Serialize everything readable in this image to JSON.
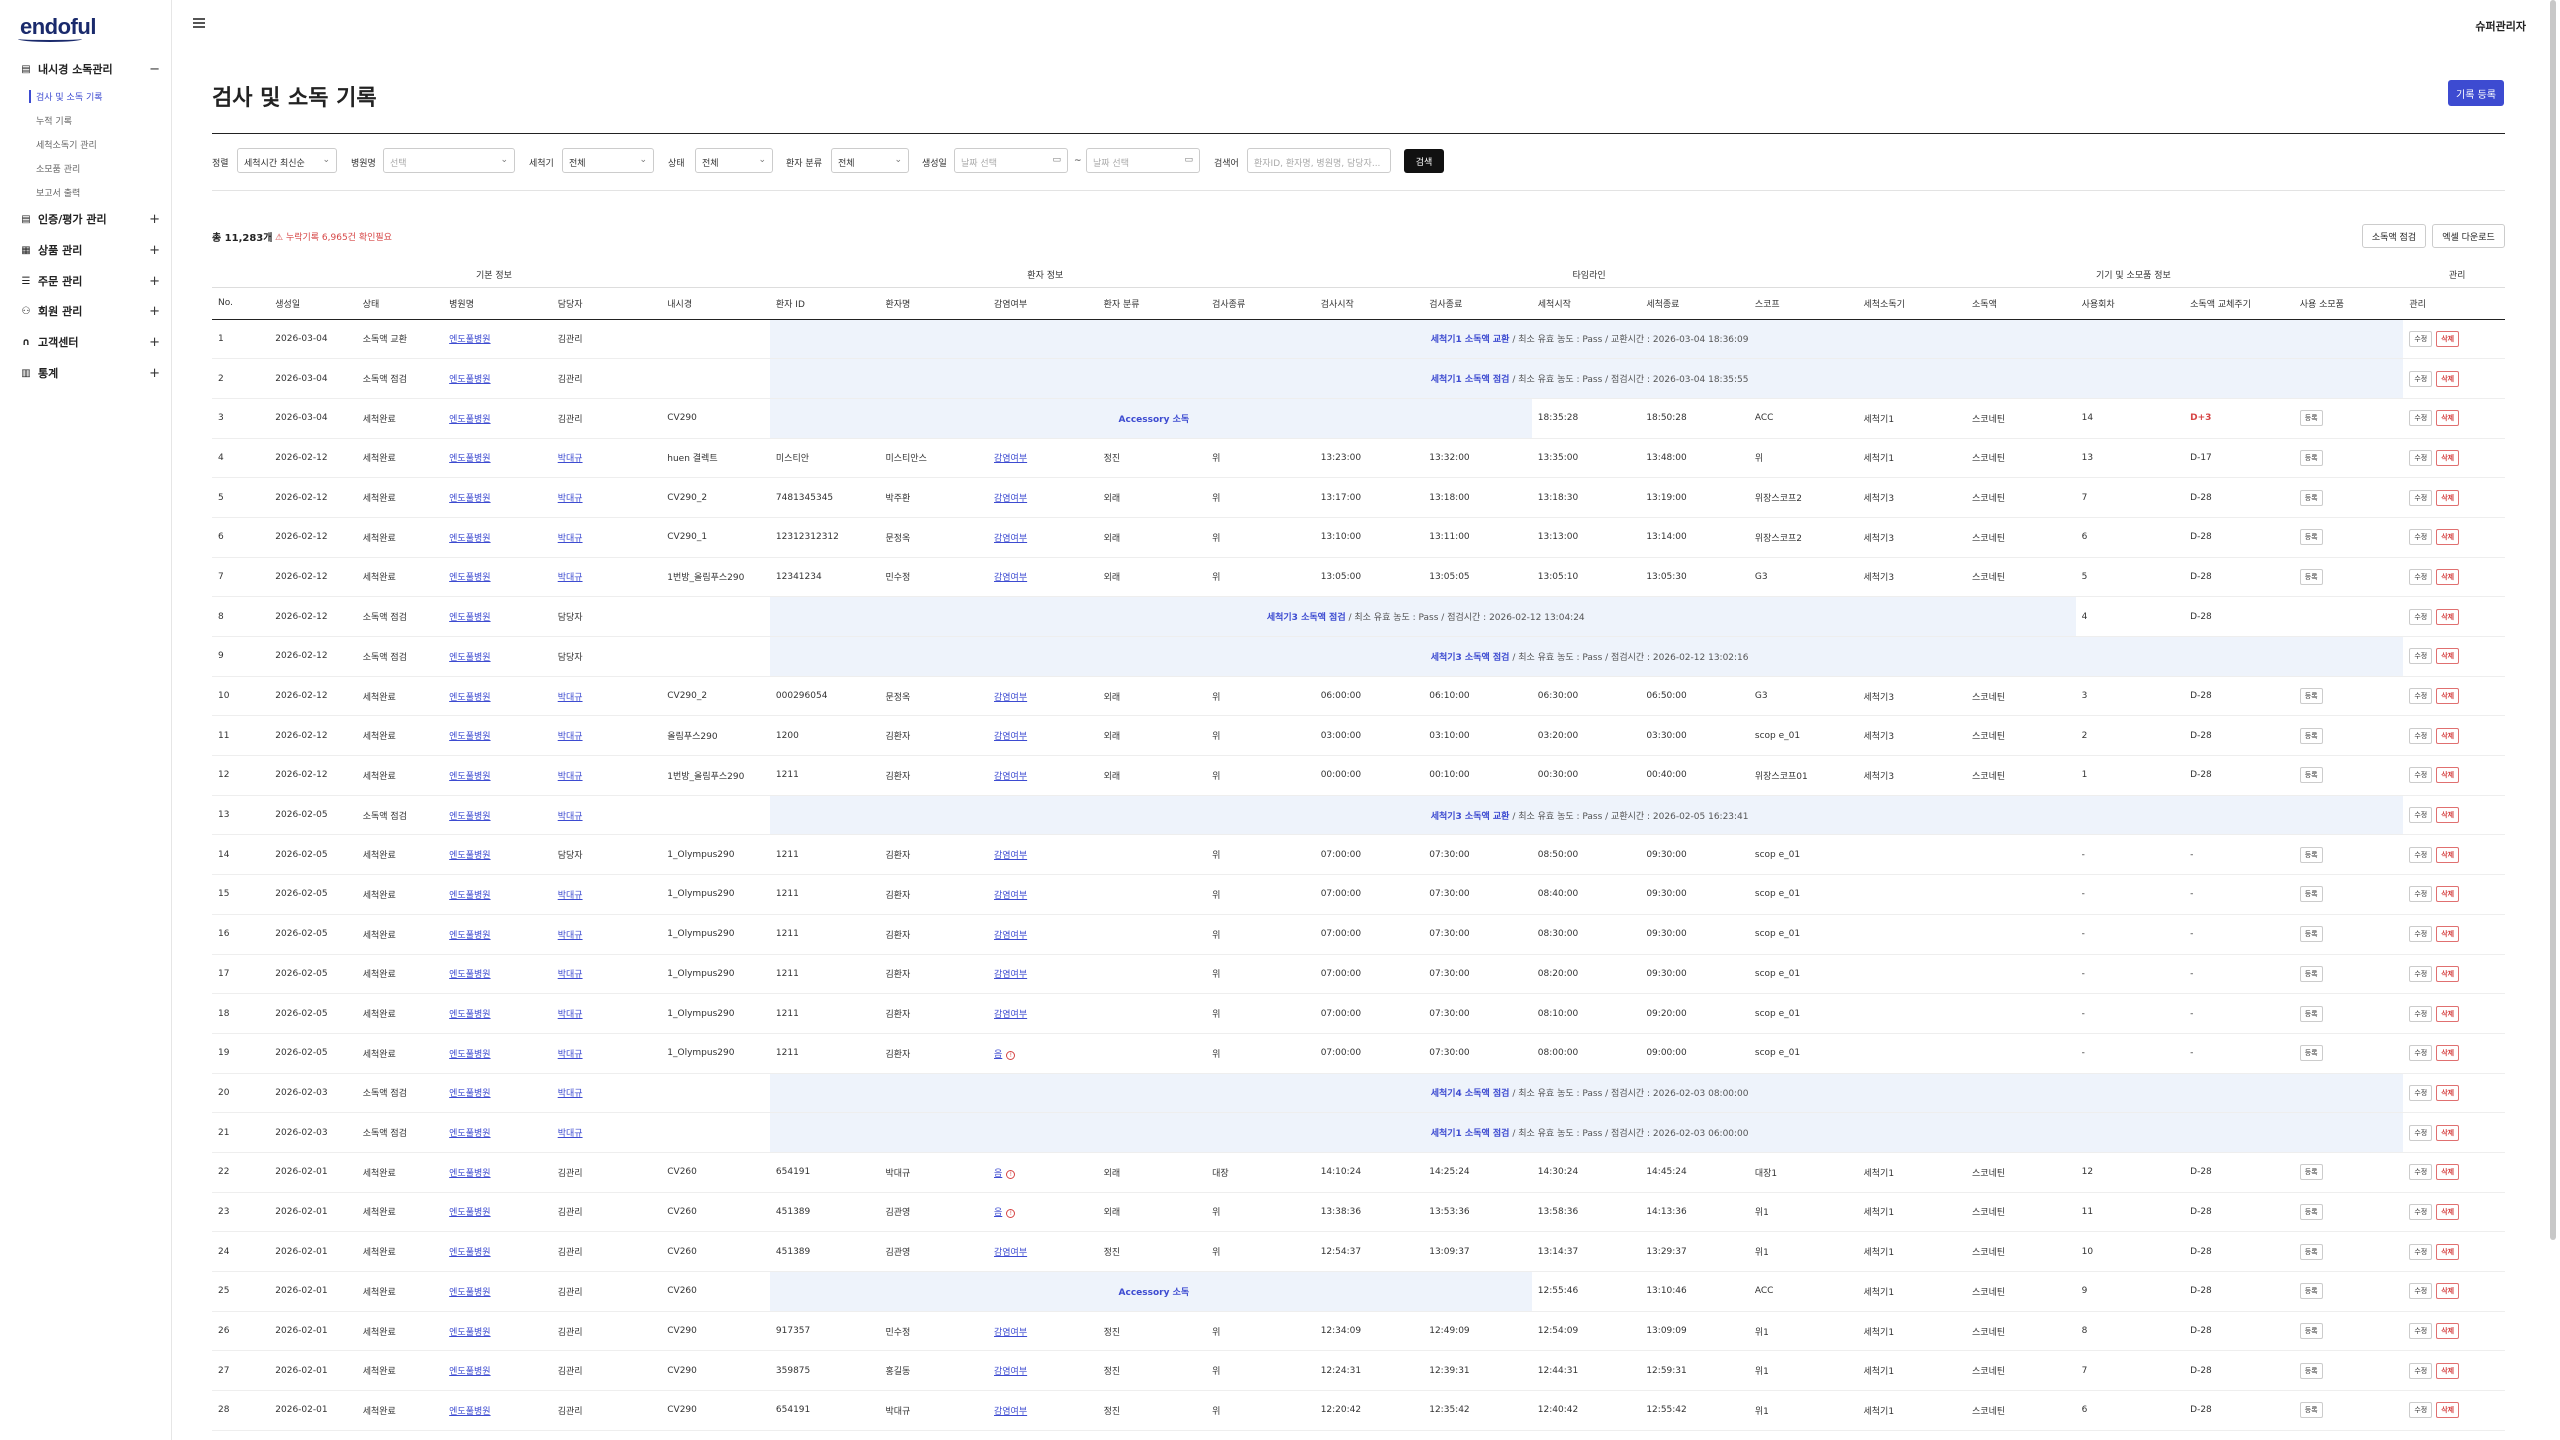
{
  "app": {
    "logo": "endoful",
    "user": "슈퍼관리자"
  },
  "sidebar": {
    "groups": [
      {
        "label": "내시경 소독관리",
        "icon": "doc-icon",
        "toggle": "−"
      },
      {
        "label": "인증/평가 관리",
        "icon": "doc-icon",
        "toggle": "+"
      },
      {
        "label": "상품 관리",
        "icon": "grid-icon",
        "toggle": "+"
      },
      {
        "label": "주문 관리",
        "icon": "list-icon",
        "toggle": "+"
      },
      {
        "label": "회원 관리",
        "icon": "user-icon",
        "toggle": "+"
      },
      {
        "label": "고객센터",
        "icon": "headset-icon",
        "toggle": "+"
      },
      {
        "label": "통계",
        "icon": "chart-icon",
        "toggle": "+"
      }
    ],
    "subitems": [
      "검사 및 소독 기록",
      "누적 기록",
      "세척소독기 관리",
      "소모품 관리",
      "보고서 출력"
    ]
  },
  "page": {
    "title": "검사 및 소독 기록",
    "register_button": "기록 등록"
  },
  "filters": {
    "sort_label": "정렬",
    "sort_value": "세척시간 최신순",
    "hospital_label": "병원명",
    "hospital_placeholder": "선택",
    "washer_label": "세척기",
    "washer_value": "전체",
    "status_label": "상태",
    "status_value": "전체",
    "patient_type_label": "환자 분류",
    "patient_type_value": "전체",
    "date_label": "생성일",
    "date_from_placeholder": "날짜 선택",
    "date_sep": "~",
    "date_to_placeholder": "날짜 선택",
    "search_label": "검색어",
    "search_placeholder": "환자ID, 환자명, 병원명, 담당자...",
    "search_button": "검색"
  },
  "summary": {
    "total": "총 11,283개",
    "warning": "누락기록 6,965건 확인필요",
    "btn_check": "소독액 점검",
    "btn_excel": "엑셀 다운로드"
  },
  "table": {
    "groups": [
      "기본 정보",
      "환자 정보",
      "타임라인",
      "기기 및 소모품 정보",
      "관리"
    ],
    "columns": [
      "No.",
      "생성일",
      "상태",
      "병원명",
      "담당자",
      "내시경",
      "환자 ID",
      "환자명",
      "감염여부",
      "환자 분류",
      "검사종류",
      "검사시작",
      "검사종료",
      "세척시작",
      "세척종료",
      "스코프",
      "세척소독기",
      "소독액",
      "사용회차",
      "소독액 교체주기",
      "사용 소모품",
      "관리"
    ],
    "actions": {
      "register": "등록",
      "edit": "수정",
      "delete": "삭제"
    },
    "rows": [
      {
        "no": "1",
        "date": "2026-03-04",
        "status": "소독액 교환",
        "hospital": "엔도풀병원",
        "staff": "김관리",
        "note_bold": "세척기1 소독액 교환",
        "note": " / 최소 유효 농도 : Pass / 교환시간 : 2026-03-04 18:36:09"
      },
      {
        "no": "2",
        "date": "2026-03-04",
        "status": "소독액 점검",
        "hospital": "엔도풀병원",
        "staff": "김관리",
        "note_bold": "세척기1 소독액 점검",
        "note": " / 최소 유효 농도 : Pass / 점검시간 : 2026-03-04 18:35:55"
      },
      {
        "no": "3",
        "date": "2026-03-04",
        "status": "세척완료",
        "hospital": "엔도풀병원",
        "staff": "김관리",
        "scope_name": "CV290",
        "accessory": "Accessory 소독",
        "wash_s": "18:35:28",
        "wash_e": "18:50:28",
        "scope": "ACC",
        "washer": "세척기1",
        "disinfectant": "스코네틴",
        "uses": "14",
        "cycle": "D+3",
        "cycle_red": true
      },
      {
        "no": "4",
        "date": "2026-02-12",
        "status": "세척완료",
        "hospital": "엔도풀병원",
        "staff": "박대규",
        "scope_name": "huen 결렉트",
        "pid": "미스티안",
        "pname": "미스티안스",
        "infect": "감염여부",
        "ptype": "정진",
        "exam": "위",
        "ex_s": "13:23:00",
        "ex_e": "13:32:00",
        "wash_s": "13:35:00",
        "wash_e": "13:48:00",
        "scope": "위",
        "washer": "세척기1",
        "disinfectant": "스코네틴",
        "uses": "13",
        "cycle": "D-17"
      },
      {
        "no": "5",
        "date": "2026-02-12",
        "status": "세척완료",
        "hospital": "엔도풀병원",
        "staff": "박대규",
        "scope_name": "CV290_2",
        "pid": "7481345345",
        "pname": "박주환",
        "infect": "감염여부",
        "ptype": "외래",
        "exam": "위",
        "ex_s": "13:17:00",
        "ex_e": "13:18:00",
        "wash_s": "13:18:30",
        "wash_e": "13:19:00",
        "scope": "위장스코프2",
        "washer": "세척기3",
        "disinfectant": "스코네틴",
        "uses": "7",
        "cycle": "D-28"
      },
      {
        "no": "6",
        "date": "2026-02-12",
        "status": "세척완료",
        "hospital": "엔도풀병원",
        "staff": "박대규",
        "scope_name": "CV290_1",
        "pid": "12312312312",
        "pname": "문정옥",
        "infect": "감염여부",
        "ptype": "외래",
        "exam": "위",
        "ex_s": "13:10:00",
        "ex_e": "13:11:00",
        "wash_s": "13:13:00",
        "wash_e": "13:14:00",
        "scope": "위장스코프2",
        "washer": "세척기3",
        "disinfectant": "스코네틴",
        "uses": "6",
        "cycle": "D-28"
      },
      {
        "no": "7",
        "date": "2026-02-12",
        "status": "세척완료",
        "hospital": "엔도풀병원",
        "staff": "박대규",
        "scope_name": "1번방_올림푸스290",
        "pid": "12341234",
        "pname": "민수정",
        "infect": "감염여부",
        "ptype": "외래",
        "exam": "위",
        "ex_s": "13:05:00",
        "ex_e": "13:05:05",
        "wash_s": "13:05:10",
        "wash_e": "13:05:30",
        "scope": "G3",
        "washer": "세척기3",
        "disinfectant": "스코네틴",
        "uses": "5",
        "cycle": "D-28"
      },
      {
        "no": "8",
        "date": "2026-02-12",
        "status": "소독액 점검",
        "hospital": "엔도풀병원",
        "staff": "담당자",
        "note_bold": "세척기3 소독액 점검",
        "note": " / 최소 유효 농도 : Pass / 점검시간 : 2026-02-12 13:04:24",
        "span_short": true,
        "uses": "4",
        "cycle": "D-28"
      },
      {
        "no": "9",
        "date": "2026-02-12",
        "status": "소독액 점검",
        "hospital": "엔도풀병원",
        "staff": "담당자",
        "note_bold": "세척기3 소독액 점검",
        "note": " / 최소 유효 농도 : Pass / 점검시간 : 2026-02-12 13:02:16"
      },
      {
        "no": "10",
        "date": "2026-02-12",
        "status": "세척완료",
        "hospital": "엔도풀병원",
        "staff": "박대규",
        "scope_name": "CV290_2",
        "pid": "000296054",
        "pname": "문정옥",
        "infect": "감염여부",
        "ptype": "외래",
        "exam": "위",
        "ex_s": "06:00:00",
        "ex_e": "06:10:00",
        "wash_s": "06:30:00",
        "wash_e": "06:50:00",
        "scope": "G3",
        "washer": "세척기3",
        "disinfectant": "스코네틴",
        "uses": "3",
        "cycle": "D-28"
      },
      {
        "no": "11",
        "date": "2026-02-12",
        "status": "세척완료",
        "hospital": "엔도풀병원",
        "staff": "박대규",
        "scope_name": "올림푸스290",
        "pid": "1200",
        "pname": "김환자",
        "infect": "감염여부",
        "ptype": "외래",
        "exam": "위",
        "ex_s": "03:00:00",
        "ex_e": "03:10:00",
        "wash_s": "03:20:00",
        "wash_e": "03:30:00",
        "scope": "scop e_01",
        "washer": "세척기3",
        "disinfectant": "스코네틴",
        "uses": "2",
        "cycle": "D-28"
      },
      {
        "no": "12",
        "date": "2026-02-12",
        "status": "세척완료",
        "hospital": "엔도풀병원",
        "staff": "박대규",
        "scope_name": "1번방_올림푸스290",
        "pid": "1211",
        "pname": "김환자",
        "infect": "감염여부",
        "ptype": "외래",
        "exam": "위",
        "ex_s": "00:00:00",
        "ex_e": "00:10:00",
        "wash_s": "00:30:00",
        "wash_e": "00:40:00",
        "scope": "위장스코프01",
        "washer": "세척기3",
        "disinfectant": "스코네틴",
        "uses": "1",
        "cycle": "D-28"
      },
      {
        "no": "13",
        "date": "2026-02-05",
        "status": "소독액 점검",
        "hospital": "엔도풀병원",
        "staff": "박대규",
        "note_bold": "세척기3 소독액 교환",
        "note": " / 최소 유효 농도 : Pass / 교환시간 : 2026-02-05 16:23:41"
      },
      {
        "no": "14",
        "date": "2026-02-05",
        "status": "세척완료",
        "hospital": "엔도풀병원",
        "staff": "담당자",
        "scope_name": "1_Olympus290",
        "pid": "1211",
        "pname": "김환자",
        "infect": "감염여부",
        "exam": "위",
        "ex_s": "07:00:00",
        "ex_e": "07:30:00",
        "wash_s": "08:50:00",
        "wash_e": "09:30:00",
        "scope": "scop e_01",
        "uses": "-",
        "cycle": "-"
      },
      {
        "no": "15",
        "date": "2026-02-05",
        "status": "세척완료",
        "hospital": "엔도풀병원",
        "staff": "박대규",
        "scope_name": "1_Olympus290",
        "pid": "1211",
        "pname": "김환자",
        "infect": "감염여부",
        "exam": "위",
        "ex_s": "07:00:00",
        "ex_e": "07:30:00",
        "wash_s": "08:40:00",
        "wash_e": "09:30:00",
        "scope": "scop e_01",
        "uses": "-",
        "cycle": "-"
      },
      {
        "no": "16",
        "date": "2026-02-05",
        "status": "세척완료",
        "hospital": "엔도풀병원",
        "staff": "박대규",
        "scope_name": "1_Olympus290",
        "pid": "1211",
        "pname": "김환자",
        "infect": "감염여부",
        "exam": "위",
        "ex_s": "07:00:00",
        "ex_e": "07:30:00",
        "wash_s": "08:30:00",
        "wash_e": "09:30:00",
        "scope": "scop e_01",
        "uses": "-",
        "cycle": "-"
      },
      {
        "no": "17",
        "date": "2026-02-05",
        "status": "세척완료",
        "hospital": "엔도풀병원",
        "staff": "박대규",
        "scope_name": "1_Olympus290",
        "pid": "1211",
        "pname": "김환자",
        "infect": "감염여부",
        "exam": "위",
        "ex_s": "07:00:00",
        "ex_e": "07:30:00",
        "wash_s": "08:20:00",
        "wash_e": "09:30:00",
        "scope": "scop e_01",
        "uses": "-",
        "cycle": "-"
      },
      {
        "no": "18",
        "date": "2026-02-05",
        "status": "세척완료",
        "hospital": "엔도풀병원",
        "staff": "박대규",
        "scope_name": "1_Olympus290",
        "pid": "1211",
        "pname": "김환자",
        "infect": "감염여부",
        "exam": "위",
        "ex_s": "07:00:00",
        "ex_e": "07:30:00",
        "wash_s": "08:10:00",
        "wash_e": "09:20:00",
        "scope": "scop e_01",
        "uses": "-",
        "cycle": "-"
      },
      {
        "no": "19",
        "date": "2026-02-05",
        "status": "세척완료",
        "hospital": "엔도풀병원",
        "staff": "박대규",
        "scope_name": "1_Olympus290",
        "pid": "1211",
        "pname": "김환자",
        "infect": "음",
        "infect_alert": true,
        "exam": "위",
        "ex_s": "07:00:00",
        "ex_e": "07:30:00",
        "wash_s": "08:00:00",
        "wash_e": "09:00:00",
        "scope": "scop e_01",
        "uses": "-",
        "cycle": "-"
      },
      {
        "no": "20",
        "date": "2026-02-03",
        "status": "소독액 점검",
        "hospital": "엔도풀병원",
        "staff": "박대규",
        "note_bold": "세척기4 소독액 점검",
        "note": " / 최소 유효 농도 : Pass / 점검시간 : 2026-02-03 08:00:00"
      },
      {
        "no": "21",
        "date": "2026-02-03",
        "status": "소독액 점검",
        "hospital": "엔도풀병원",
        "staff": "박대규",
        "note_bold": "세척기1 소독액 점검",
        "note": " / 최소 유효 농도 : Pass / 점검시간 : 2026-02-03 06:00:00"
      },
      {
        "no": "22",
        "date": "2026-02-01",
        "status": "세척완료",
        "hospital": "엔도풀병원",
        "staff": "김관리",
        "scope_name": "CV260",
        "pid": "654191",
        "pname": "박대규",
        "infect": "음",
        "infect_alert": true,
        "ptype": "외래",
        "exam": "대장",
        "ex_s": "14:10:24",
        "ex_e": "14:25:24",
        "wash_s": "14:30:24",
        "wash_e": "14:45:24",
        "scope": "대장1",
        "washer": "세척기1",
        "disinfectant": "스코네틴",
        "uses": "12",
        "cycle": "D-28"
      },
      {
        "no": "23",
        "date": "2026-02-01",
        "status": "세척완료",
        "hospital": "엔도풀병원",
        "staff": "김관리",
        "scope_name": "CV260",
        "pid": "451389",
        "pname": "김관영",
        "infect": "음",
        "infect_alert": true,
        "ptype": "외래",
        "exam": "위",
        "ex_s": "13:38:36",
        "ex_e": "13:53:36",
        "wash_s": "13:58:36",
        "wash_e": "14:13:36",
        "scope": "위1",
        "washer": "세척기1",
        "disinfectant": "스코네틴",
        "uses": "11",
        "cycle": "D-28"
      },
      {
        "no": "24",
        "date": "2026-02-01",
        "status": "세척완료",
        "hospital": "엔도풀병원",
        "staff": "김관리",
        "scope_name": "CV260",
        "pid": "451389",
        "pname": "김관영",
        "infect": "감염여부",
        "ptype": "정진",
        "exam": "위",
        "ex_s": "12:54:37",
        "ex_e": "13:09:37",
        "wash_s": "13:14:37",
        "wash_e": "13:29:37",
        "scope": "위1",
        "washer": "세척기1",
        "disinfectant": "스코네틴",
        "uses": "10",
        "cycle": "D-28"
      },
      {
        "no": "25",
        "date": "2026-02-01",
        "status": "세척완료",
        "hospital": "엔도풀병원",
        "staff": "김관리",
        "scope_name": "CV260",
        "accessory": "Accessory 소독",
        "wash_s": "12:55:46",
        "wash_e": "13:10:46",
        "scope": "ACC",
        "washer": "세척기1",
        "disinfectant": "스코네틴",
        "uses": "9",
        "cycle": "D-28"
      },
      {
        "no": "26",
        "date": "2026-02-01",
        "status": "세척완료",
        "hospital": "엔도풀병원",
        "staff": "김관리",
        "scope_name": "CV290",
        "pid": "917357",
        "pname": "민수정",
        "infect": "감염여부",
        "ptype": "정진",
        "exam": "위",
        "ex_s": "12:34:09",
        "ex_e": "12:49:09",
        "wash_s": "12:54:09",
        "wash_e": "13:09:09",
        "scope": "위1",
        "washer": "세척기1",
        "disinfectant": "스코네틴",
        "uses": "8",
        "cycle": "D-28"
      },
      {
        "no": "27",
        "date": "2026-02-01",
        "status": "세척완료",
        "hospital": "엔도풀병원",
        "staff": "김관리",
        "scope_name": "CV290",
        "pid": "359875",
        "pname": "홍길동",
        "infect": "감염여부",
        "ptype": "정진",
        "exam": "위",
        "ex_s": "12:24:31",
        "ex_e": "12:39:31",
        "wash_s": "12:44:31",
        "wash_e": "12:59:31",
        "scope": "위1",
        "washer": "세척기1",
        "disinfectant": "스코네틴",
        "uses": "7",
        "cycle": "D-28"
      },
      {
        "no": "28",
        "date": "2026-02-01",
        "status": "세척완료",
        "hospital": "엔도풀병원",
        "staff": "김관리",
        "scope_name": "CV290",
        "pid": "654191",
        "pname": "박대규",
        "infect": "감염여부",
        "ptype": "정진",
        "exam": "위",
        "ex_s": "12:20:42",
        "ex_e": "12:35:42",
        "wash_s": "12:40:42",
        "wash_e": "12:55:42",
        "scope": "위1",
        "washer": "세척기1",
        "disinfectant": "스코네틴",
        "uses": "6",
        "cycle": "D-28"
      }
    ]
  }
}
